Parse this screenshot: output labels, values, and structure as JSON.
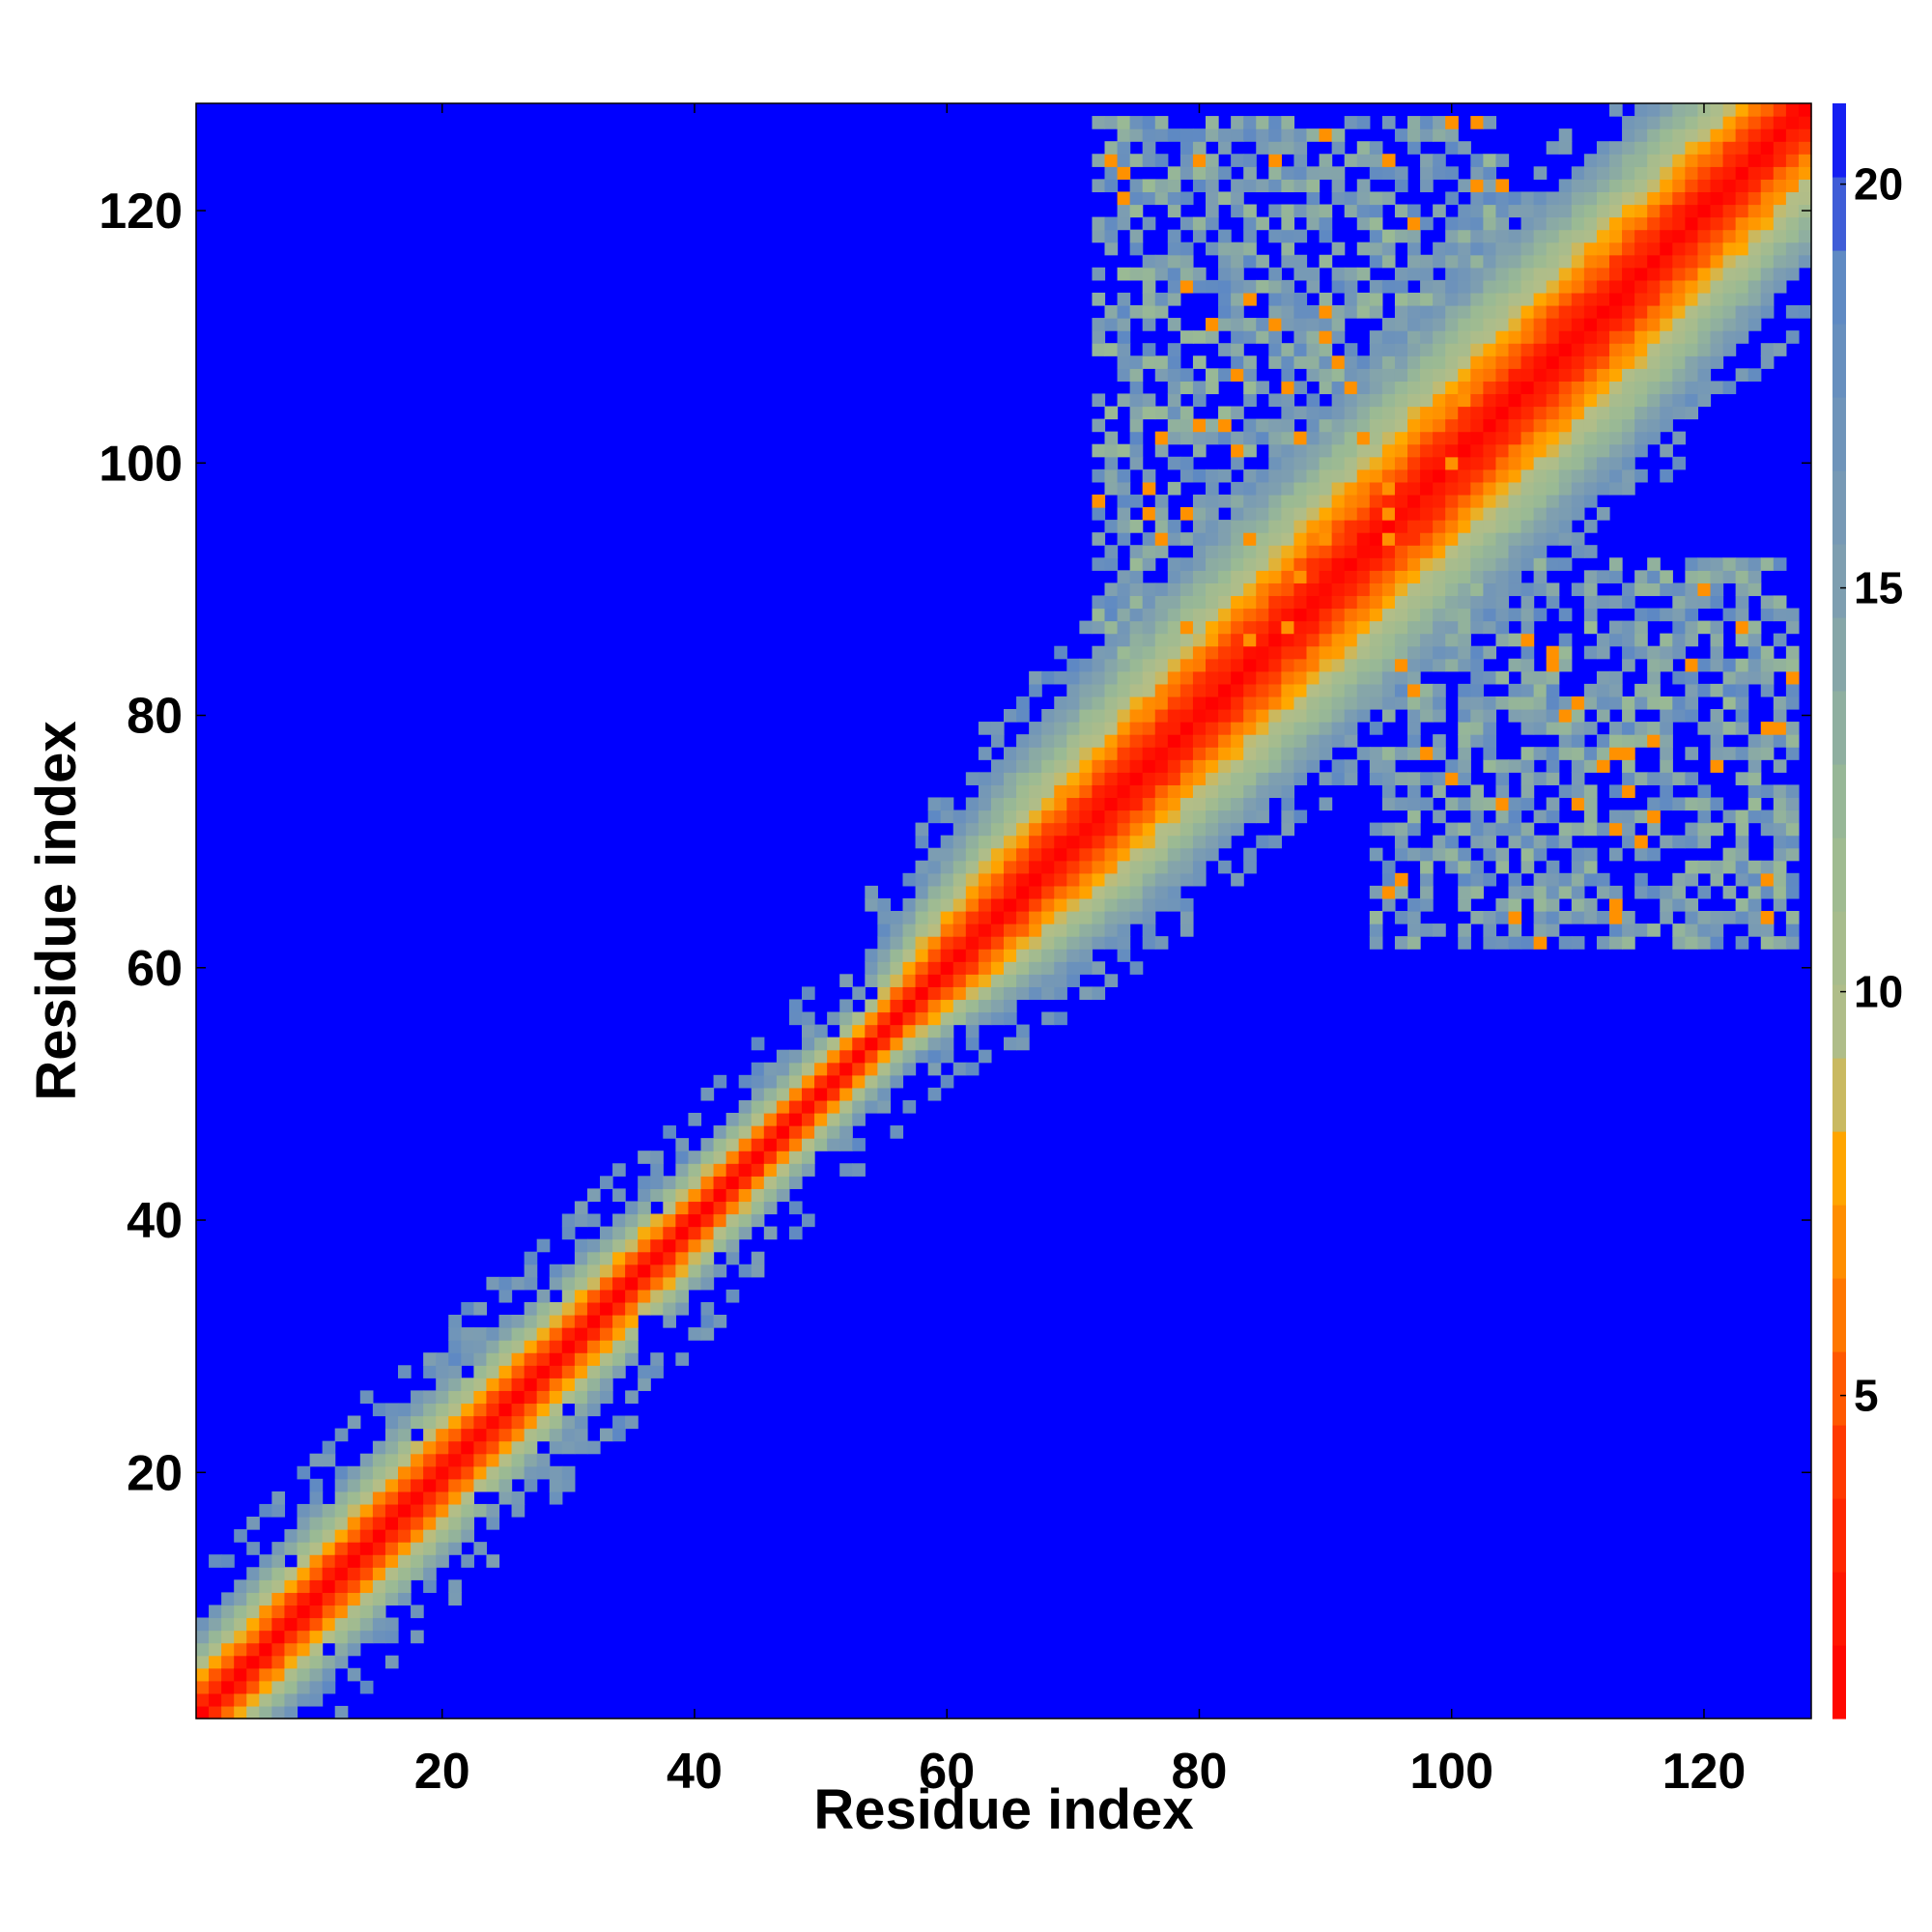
{
  "chart_data": {
    "type": "heatmap",
    "title": "",
    "xlabel": "Residue index",
    "ylabel": "Residue index",
    "n_residues": 128,
    "xlim": [
      1,
      128
    ],
    "ylim": [
      1,
      128
    ],
    "xticks": [
      20,
      40,
      60,
      80,
      100,
      120
    ],
    "yticks": [
      20,
      40,
      60,
      80,
      100,
      120
    ],
    "colorbar": {
      "ticks": [
        5,
        10,
        15,
        20
      ],
      "range": [
        1,
        21
      ],
      "stops": [
        {
          "value": 1,
          "color": "#ff0000"
        },
        {
          "value": 4,
          "color": "#ff3300"
        },
        {
          "value": 6,
          "color": "#ff7700"
        },
        {
          "value": 8,
          "color": "#ffaa00"
        },
        {
          "value": 9,
          "color": "#b5be86"
        },
        {
          "value": 12,
          "color": "#9aba94"
        },
        {
          "value": 15,
          "color": "#7f9fb0"
        },
        {
          "value": 19,
          "color": "#5d88c4"
        },
        {
          "value": 21,
          "color": "#0000ff"
        }
      ]
    },
    "grid": false,
    "legend": "colorbar right",
    "background_value_color": "#0000ff",
    "diagonal_band_halfwidth_by_residue": [
      {
        "residue": 1,
        "halfwidth": 7
      },
      {
        "residue": 20,
        "halfwidth": 8
      },
      {
        "residue": 40,
        "halfwidth": 6
      },
      {
        "residue": 55,
        "halfwidth": 5
      },
      {
        "residue": 60,
        "halfwidth": 8
      },
      {
        "residue": 70,
        "halfwidth": 12
      },
      {
        "residue": 90,
        "halfwidth": 14
      },
      {
        "residue": 110,
        "halfwidth": 14
      },
      {
        "residue": 128,
        "halfwidth": 12
      }
    ],
    "offdiagonal_contact_regions": [
      {
        "x_range": [
          72,
          104
        ],
        "y_range": [
          84,
          127
        ],
        "typical_distance": 16
      },
      {
        "x_range": [
          94,
          127
        ],
        "y_range": [
          62,
          92
        ],
        "typical_distance": 16
      }
    ]
  }
}
